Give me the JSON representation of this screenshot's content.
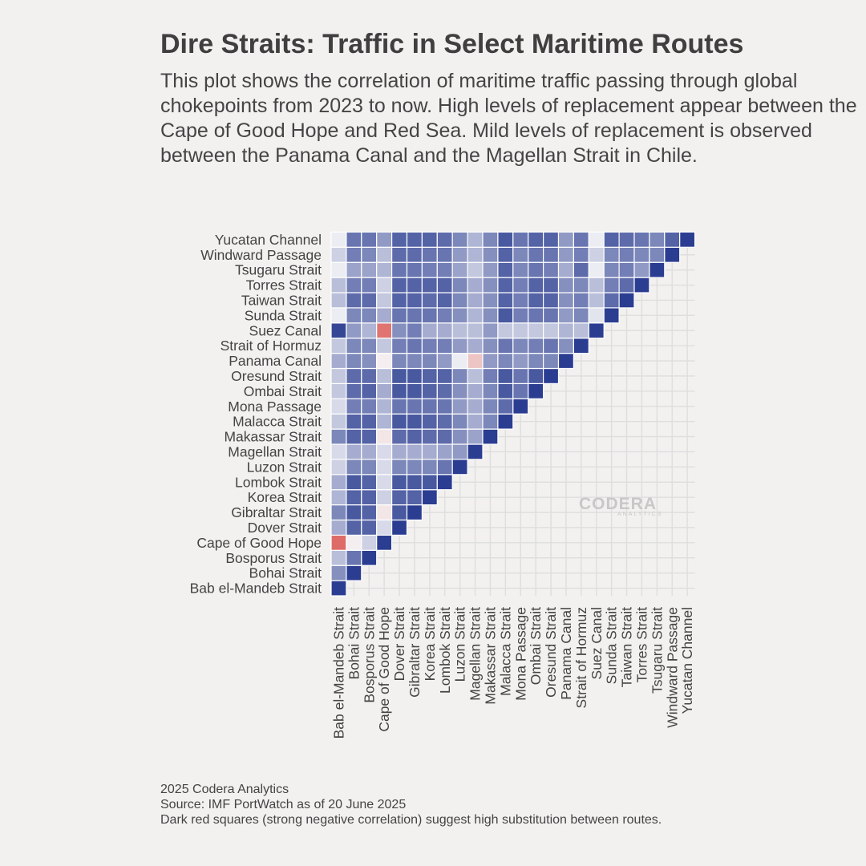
{
  "title": "Dire Straits: Traffic in Select Maritime Routes",
  "subtitle": "This plot shows the correlation of maritime traffic passing through global chokepoints from 2023 to now. High levels of replacement appear between the Cape of Good Hope and Red Sea. Mild levels of replacement is observed between the Panama Canal and the Magellan Strait in Chile.",
  "caption": {
    "line1": "2025 Codera Analytics",
    "line2": "Source: IMF PortWatch as of 20 June 2025",
    "line3": "Dark red squares (strong negative correlation) suggest high substitution between routes."
  },
  "watermark": {
    "name": "CODERA",
    "sub": "ANALYTICS"
  },
  "colors": {
    "background": "#f2f1ef",
    "grid": "#dedede",
    "strong_positive": "#2b3d91",
    "neutral": "#f6f6f8",
    "strong_negative": "#d9534f"
  },
  "chart_data": {
    "type": "heatmap",
    "title": "Dire Straits: Traffic in Select Maritime Routes",
    "value_range": [
      -1,
      1
    ],
    "routes": [
      "Bab el-Mandeb Strait",
      "Bohai Strait",
      "Bosporus Strait",
      "Cape of Good Hope",
      "Dover Strait",
      "Gibraltar Strait",
      "Korea Strait",
      "Lombok Strait",
      "Luzon Strait",
      "Magellan Strait",
      "Makassar Strait",
      "Malacca Strait",
      "Mona Passage",
      "Ombai Strait",
      "Oresund Strait",
      "Panama Canal",
      "Strait of Hormuz",
      "Suez Canal",
      "Sunda Strait",
      "Taiwan Strait",
      "Torres Strait",
      "Tsugaru Strait",
      "Windward Passage",
      "Yucatan Channel"
    ],
    "matrix": [
      [
        1.0
      ],
      [
        0.55,
        1.0
      ],
      [
        0.3,
        0.7,
        1.0
      ],
      [
        -0.85,
        -0.05,
        0.2,
        1.0
      ],
      [
        0.4,
        0.8,
        0.8,
        0.15,
        1.0
      ],
      [
        0.6,
        0.85,
        0.8,
        -0.1,
        0.85,
        1.0
      ],
      [
        0.35,
        0.8,
        0.8,
        0.2,
        0.8,
        0.8,
        1.0
      ],
      [
        0.4,
        0.85,
        0.8,
        0.15,
        0.85,
        0.85,
        0.85,
        1.0
      ],
      [
        0.2,
        0.6,
        0.6,
        0.15,
        0.6,
        0.6,
        0.6,
        0.7,
        1.0
      ],
      [
        0.15,
        0.4,
        0.4,
        0.15,
        0.4,
        0.4,
        0.4,
        0.45,
        0.5,
        1.0
      ],
      [
        0.6,
        0.8,
        0.8,
        -0.1,
        0.75,
        0.8,
        0.75,
        0.75,
        0.55,
        0.45,
        1.0
      ],
      [
        0.25,
        0.8,
        0.8,
        0.35,
        0.85,
        0.85,
        0.8,
        0.75,
        0.6,
        0.4,
        0.6,
        1.0
      ],
      [
        0.15,
        0.65,
        0.65,
        0.35,
        0.7,
        0.7,
        0.7,
        0.7,
        0.5,
        0.4,
        0.6,
        0.75,
        1.0
      ],
      [
        0.25,
        0.75,
        0.8,
        0.4,
        0.85,
        0.85,
        0.8,
        0.75,
        0.55,
        0.4,
        0.6,
        0.85,
        0.7,
        1.0
      ],
      [
        0.25,
        0.75,
        0.75,
        0.3,
        0.85,
        0.85,
        0.8,
        0.8,
        0.6,
        0.3,
        0.65,
        0.85,
        0.7,
        0.85,
        1.0
      ],
      [
        0.4,
        0.6,
        0.55,
        -0.05,
        0.6,
        0.6,
        0.6,
        0.5,
        0.05,
        -0.3,
        0.5,
        0.6,
        0.5,
        0.6,
        0.6,
        1.0
      ],
      [
        0.25,
        0.6,
        0.6,
        0.25,
        0.65,
        0.7,
        0.65,
        0.65,
        0.5,
        0.4,
        0.55,
        0.7,
        0.6,
        0.65,
        0.7,
        0.55,
        1.0
      ],
      [
        0.95,
        0.5,
        0.35,
        -0.8,
        0.55,
        0.65,
        0.4,
        0.4,
        0.3,
        0.3,
        0.5,
        0.25,
        0.25,
        0.25,
        0.25,
        0.35,
        0.3,
        1.0
      ],
      [
        0.05,
        0.6,
        0.6,
        0.4,
        0.7,
        0.7,
        0.7,
        0.65,
        0.55,
        0.35,
        0.55,
        0.85,
        0.65,
        0.7,
        0.7,
        0.5,
        0.6,
        0.1,
        1.0
      ],
      [
        0.3,
        0.75,
        0.75,
        0.25,
        0.8,
        0.8,
        0.75,
        0.8,
        0.6,
        0.4,
        0.55,
        0.8,
        0.65,
        0.8,
        0.8,
        0.55,
        0.65,
        0.3,
        0.75,
        1.0
      ],
      [
        0.3,
        0.65,
        0.65,
        0.2,
        0.8,
        0.8,
        0.8,
        0.8,
        0.6,
        0.4,
        0.55,
        0.8,
        0.65,
        0.8,
        0.8,
        0.55,
        0.6,
        0.3,
        0.65,
        0.75,
        1.0
      ],
      [
        0.05,
        0.45,
        0.45,
        0.35,
        0.7,
        0.7,
        0.65,
        0.65,
        0.45,
        0.25,
        0.5,
        0.8,
        0.6,
        0.7,
        0.65,
        0.4,
        0.75,
        0.05,
        0.6,
        0.65,
        0.5,
        1.0
      ],
      [
        0.2,
        0.65,
        0.6,
        0.3,
        0.75,
        0.75,
        0.7,
        0.7,
        0.5,
        0.35,
        0.55,
        0.8,
        0.6,
        0.7,
        0.7,
        0.5,
        0.65,
        0.2,
        0.6,
        0.65,
        0.6,
        0.6,
        1.0
      ],
      [
        0.05,
        0.7,
        0.7,
        0.5,
        0.8,
        0.8,
        0.8,
        0.75,
        0.6,
        0.35,
        0.6,
        0.85,
        0.7,
        0.8,
        0.8,
        0.5,
        0.7,
        0.05,
        0.8,
        0.75,
        0.7,
        0.6,
        0.8,
        1.0
      ]
    ]
  }
}
